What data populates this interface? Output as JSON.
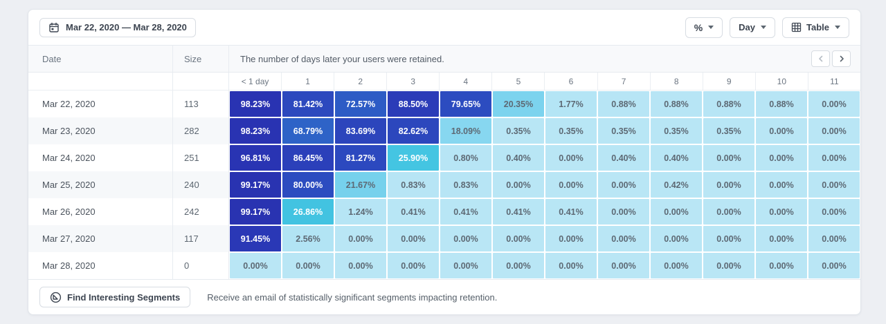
{
  "toolbar": {
    "date_range": "Mar 22, 2020 — Mar 28, 2020",
    "percent_label": "%",
    "granularity_label": "Day",
    "view_label": "Table"
  },
  "table": {
    "col_date": "Date",
    "col_size": "Size",
    "description": "The number of days later your users were retained.",
    "day_headers": [
      "< 1 day",
      "1",
      "2",
      "3",
      "4",
      "5",
      "6",
      "7",
      "8",
      "9",
      "10",
      "11"
    ],
    "rows": [
      {
        "date": "Mar 22, 2020",
        "size": "113",
        "values": [
          98.23,
          81.42,
          72.57,
          88.5,
          79.65,
          20.35,
          1.77,
          0.88,
          0.88,
          0.88,
          0.88,
          0.0
        ]
      },
      {
        "date": "Mar 23, 2020",
        "size": "282",
        "values": [
          98.23,
          68.79,
          83.69,
          82.62,
          18.09,
          0.35,
          0.35,
          0.35,
          0.35,
          0.35,
          0.0,
          0.0
        ]
      },
      {
        "date": "Mar 24, 2020",
        "size": "251",
        "values": [
          96.81,
          86.45,
          81.27,
          25.9,
          0.8,
          0.4,
          0.0,
          0.4,
          0.4,
          0.0,
          0.0,
          0.0
        ]
      },
      {
        "date": "Mar 25, 2020",
        "size": "240",
        "values": [
          99.17,
          80.0,
          21.67,
          0.83,
          0.83,
          0.0,
          0.0,
          0.0,
          0.42,
          0.0,
          0.0,
          0.0
        ]
      },
      {
        "date": "Mar 26, 2020",
        "size": "242",
        "values": [
          99.17,
          26.86,
          1.24,
          0.41,
          0.41,
          0.41,
          0.41,
          0.0,
          0.0,
          0.0,
          0.0,
          0.0
        ]
      },
      {
        "date": "Mar 27, 2020",
        "size": "117",
        "values": [
          91.45,
          2.56,
          0.0,
          0.0,
          0.0,
          0.0,
          0.0,
          0.0,
          0.0,
          0.0,
          0.0,
          0.0
        ]
      },
      {
        "date": "Mar 28, 2020",
        "size": "0",
        "values": [
          0.0,
          0.0,
          0.0,
          0.0,
          0.0,
          0.0,
          0.0,
          0.0,
          0.0,
          0.0,
          0.0,
          0.0
        ]
      }
    ]
  },
  "footer": {
    "button_label": "Find Interesting Segments",
    "description": "Receive an email of statistically significant segments impacting retention."
  },
  "colors": {
    "cell_text_light": "#ffffff",
    "cell_text_dark": "#5d6974",
    "white_text_threshold": 24,
    "heatmap_stops": [
      {
        "pct": 0,
        "color": "#b9e6f5"
      },
      {
        "pct": 10,
        "color": "#9fdff3"
      },
      {
        "pct": 18,
        "color": "#87d7f0"
      },
      {
        "pct": 22,
        "color": "#74d0ec"
      },
      {
        "pct": 26,
        "color": "#43c5e2"
      },
      {
        "pct": 45,
        "color": "#3495d6"
      },
      {
        "pct": 65,
        "color": "#2f6cc9"
      },
      {
        "pct": 75,
        "color": "#2d55c4"
      },
      {
        "pct": 83,
        "color": "#2c46bd"
      },
      {
        "pct": 91,
        "color": "#2a38b6"
      },
      {
        "pct": 100,
        "color": "#2932b1"
      }
    ]
  }
}
